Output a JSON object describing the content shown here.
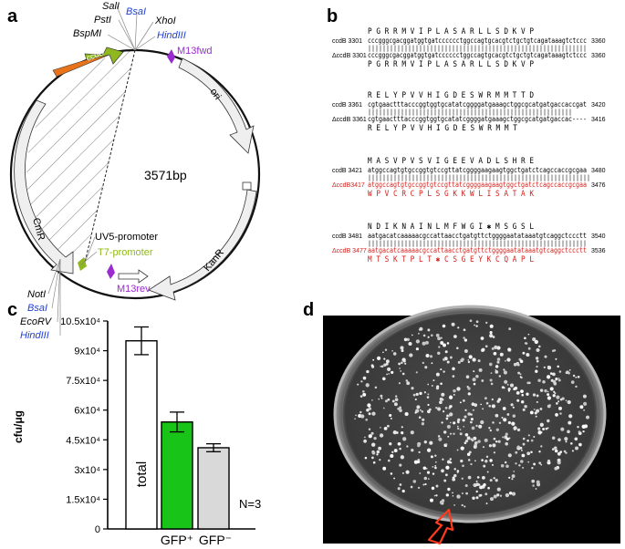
{
  "panels": {
    "a": "a",
    "b": "b",
    "c": "c",
    "d": "d"
  },
  "plasmid": {
    "size_label": "3571bp",
    "sites_top": [
      "SalI",
      "PstI",
      "BsaI",
      "XhoI",
      "BspMI",
      "HindIII"
    ],
    "sites_bottom": [
      "NotI",
      "BsaI",
      "EcoRV",
      "HindIII"
    ],
    "features": {
      "ccdb": "ccdB",
      "m13fwd": "M13fwd",
      "ori": "ori",
      "cmr": "CmR",
      "kanr": "KanR",
      "uv5": "UV5-promoter",
      "t7": "T7-promoter",
      "m13rev": "M13rev"
    },
    "colors": {
      "blue": "#1f3fd6",
      "purple": "#9a2bd0",
      "green": "#8fb81e",
      "orange": "#e8731a"
    }
  },
  "alignment": [
    {
      "aa_top": "P G R R M V I P L A S A R L L S D K V P",
      "name1": "ccdB",
      "start1": "3301",
      "seq1": "cccgggcgacggatggtgatcccccctggccagtgcacgtctgctgtcagataaagtctccc",
      "end1": "3360",
      "match": "||||||||||||||||||||||||||||||||||||||||||||||||||||||||||||",
      "name2": "ΔccdB",
      "start2": "3301",
      "seq2": "cccgggcgacggatggtgatcccccctggccagtgcacgtctgctgtcagataaagtctccc",
      "end2": "3360",
      "aa_bot": "P G R R M V I P L A S A R L L S D K V P"
    },
    {
      "aa_top": "R E L Y P V V H I G D E S W R M M T T D",
      "name1": "ccdB",
      "start1": "3361",
      "seq1": "cgtgaactttacccggtggtgcatatcggggatgaaagctggcgcatgatgaccaccgat",
      "end1": "3420",
      "match": "||||||||||||||||||||||||||||||||||||||||||||||||||||||||",
      "name2": "ΔccdB",
      "start2": "3361",
      "seq2": "cgtgaactttacccggtggtgcatatcggggatgaaagctggcgcatgatgaccac----",
      "end2": "3416",
      "aa_bot": "R E L Y P V V H I G D E S W R M M T"
    },
    {
      "aa_top": "M A S V P V S V I G E E V A D L S H R E",
      "name1": "ccdB",
      "start1": "3421",
      "seq1": "atggccagtgtgccggtgtccgttatcggggaagaagtggctgatctcagccaccgcgaa",
      "end1": "3480",
      "match": "|||||||||||||||||||||||||||||||||||||||||||||||||||||||||||||",
      "name2": "ΔccdB3417",
      "start2": "",
      "seq2": "atggccagtgtgccggtgtccgttatcggggaagaagtggctgatctcagccaccgcgaa",
      "end2": "3476",
      "aa_bot": "W P V C R C P L S G K K W L I S A T A K"
    },
    {
      "aa_top": "N D I K N A I N L M F W G I ✱ M S G S L",
      "name1": "ccdB",
      "start1": "3481",
      "seq1": "aatgacatcaaaaacgccattaacctgatgttctggggaatataaatgtcaggctccctt",
      "end1": "3540",
      "match": "||||||||||||||||||||||||||||||||||||||||||||||||||||||||||||",
      "name2": "ΔccdB 3477",
      "start2": "",
      "seq2": "aatgacatcaaaaacgccattaacctgatgttctggggaatataaatgtcaggctccctt",
      "end2": "3536",
      "aa_bot": "M T S K T P L T ✱ C S G E Y K C Q A P L"
    }
  ],
  "chart_data": {
    "type": "bar",
    "categories": [
      "total",
      "GFP+",
      "GFP-"
    ],
    "values": [
      95000,
      54000,
      41000
    ],
    "errors": [
      7000,
      5000,
      2000
    ],
    "colors": [
      "#ffffff",
      "#18c418",
      "#d9d9d9"
    ],
    "ylabel": "cfu/μg",
    "ylim": [
      0,
      105000
    ],
    "yticks": [
      0,
      15000,
      30000,
      45000,
      60000,
      75000,
      90000,
      105000
    ],
    "ytick_labels": [
      "0",
      "1.5x10⁴",
      "3x10⁴",
      "4.5x10⁴",
      "6x10⁴",
      "7.5x10⁴",
      "9x10⁴",
      "10.5x10⁴"
    ],
    "inbar_label": "total",
    "x_labels": [
      "GFP⁺",
      "GFP⁻"
    ],
    "annotation": "N=3"
  }
}
